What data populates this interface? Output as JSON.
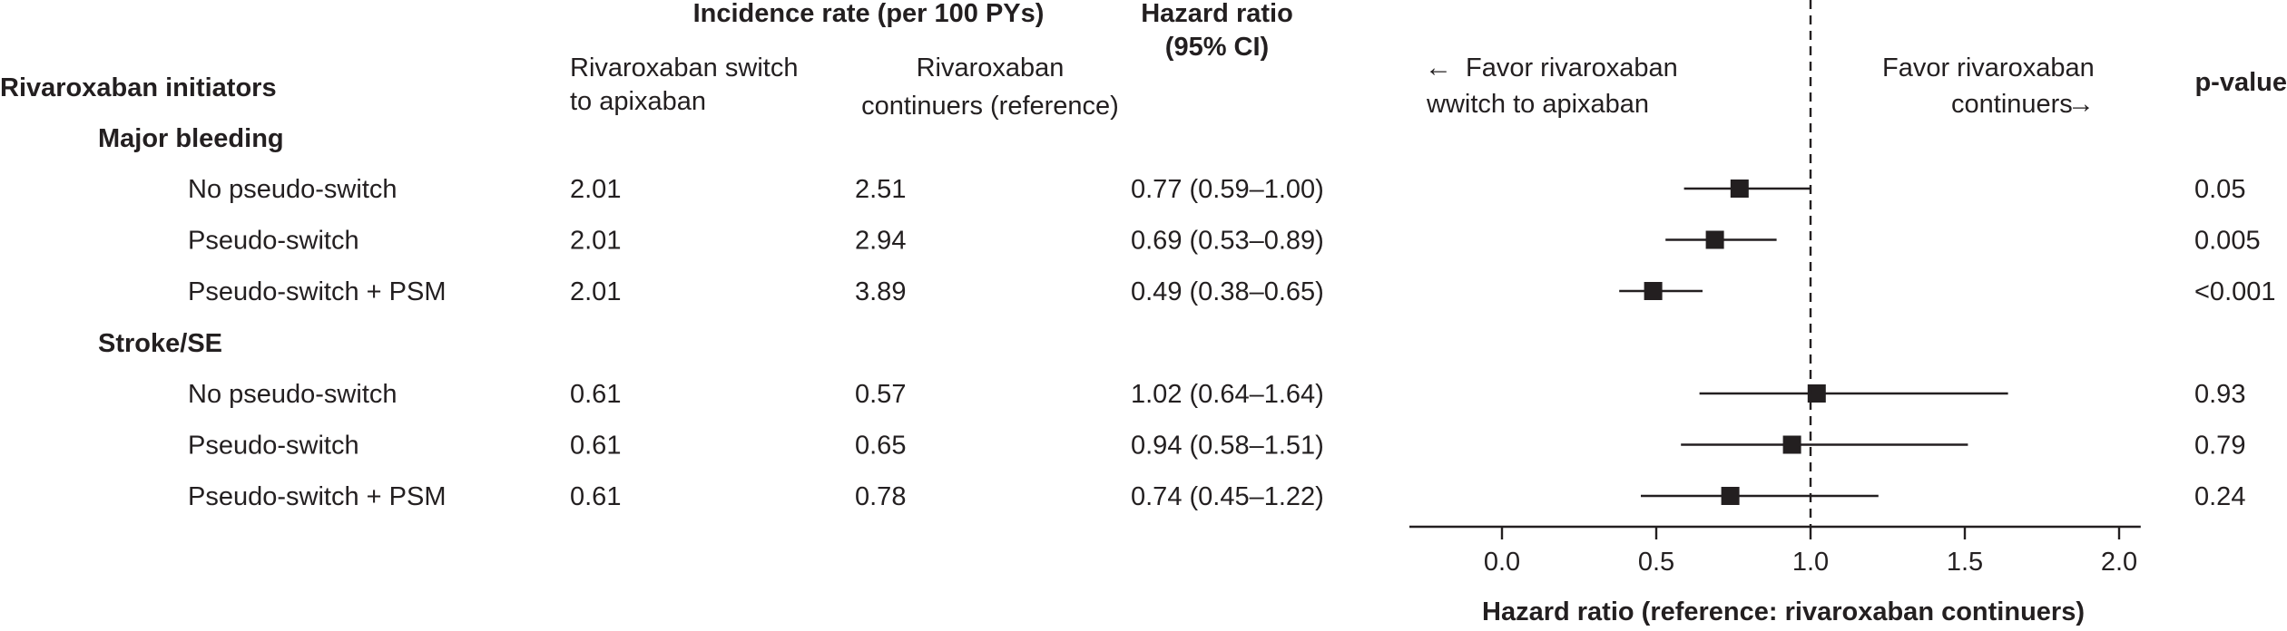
{
  "chart_data": {
    "type": "forest",
    "headers": {
      "incidence": "Incidence rate (per 100 PYs)",
      "hr_line1": "Hazard ratio",
      "hr_line2": "(95% CI)",
      "group": "Rivaroxaban initiators",
      "switch_line1": "Rivaroxaban switch",
      "switch_line2": "to apixaban",
      "cont_line1": "Rivaroxaban",
      "cont_line2": "continuers (reference)",
      "pvalue": "p-value"
    },
    "favor_left": {
      "line1": "Favor rivaroxaban",
      "line2": "wwitch to apixaban",
      "arrow": "←"
    },
    "favor_right": {
      "line1": "Favor rivaroxaban",
      "line2": "continuers",
      "arrow": "→"
    },
    "sections": [
      {
        "label": "Major bleeding",
        "rows": [
          {
            "label": "No pseudo-switch",
            "switch_rate": "2.01",
            "continuer_rate": "2.51",
            "hr_text": "0.77 (0.59–1.00)",
            "hr": 0.77,
            "lo": 0.59,
            "hi": 1.0,
            "p": "0.05"
          },
          {
            "label": "Pseudo-switch",
            "switch_rate": "2.01",
            "continuer_rate": "2.94",
            "hr_text": "0.69 (0.53–0.89)",
            "hr": 0.69,
            "lo": 0.53,
            "hi": 0.89,
            "p": "0.005"
          },
          {
            "label": "Pseudo-switch + PSM",
            "switch_rate": "2.01",
            "continuer_rate": "3.89",
            "hr_text": "0.49 (0.38–0.65)",
            "hr": 0.49,
            "lo": 0.38,
            "hi": 0.65,
            "p": "<0.001"
          }
        ]
      },
      {
        "label": "Stroke/SE",
        "rows": [
          {
            "label": "No pseudo-switch",
            "switch_rate": "0.61",
            "continuer_rate": "0.57",
            "hr_text": "1.02 (0.64–1.64)",
            "hr": 1.02,
            "lo": 0.64,
            "hi": 1.64,
            "p": "0.93"
          },
          {
            "label": "Pseudo-switch",
            "switch_rate": "0.61",
            "continuer_rate": "0.65",
            "hr_text": "0.94 (0.58–1.51)",
            "hr": 0.94,
            "lo": 0.58,
            "hi": 1.51,
            "p": "0.79"
          },
          {
            "label": "Pseudo-switch + PSM",
            "switch_rate": "0.61",
            "continuer_rate": "0.78",
            "hr_text": "0.74 (0.45–1.22)",
            "hr": 0.74,
            "lo": 0.45,
            "hi": 1.22,
            "p": "0.24"
          }
        ]
      }
    ],
    "x_axis": {
      "ticks": [
        0.0,
        0.5,
        1.0,
        1.5,
        2.0
      ],
      "tick_labels": [
        "0.0",
        "0.5",
        "1.0",
        "1.5",
        "2.0"
      ],
      "range": [
        -0.3,
        2.07
      ],
      "label": "Hazard ratio (reference: rivaroxaban continuers)",
      "reference_line": 1.0
    }
  }
}
